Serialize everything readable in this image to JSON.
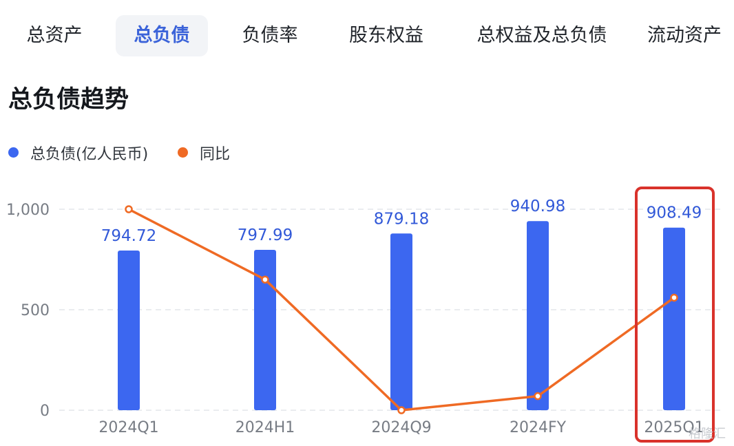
{
  "tabs": [
    {
      "label": "总资产",
      "active": false
    },
    {
      "label": "总负债",
      "active": true
    },
    {
      "label": "负债率",
      "active": false
    },
    {
      "label": "股东权益",
      "active": false
    },
    {
      "label": "总权益及总负债",
      "active": false
    },
    {
      "label": "流动资产",
      "active": false
    }
  ],
  "section_title": "总负债趋势",
  "watermark": "格隆汇",
  "colors": {
    "bar": "#3c67f0",
    "line": "#ef6a24",
    "highlight_box": "#d9322b",
    "value_label": "#3259d8",
    "axis_text": "#777c84",
    "grid": "#e4e6ea",
    "active_tab_text": "#3b63d9",
    "active_tab_bg": "#f2f4f7"
  },
  "chart_data": {
    "type": "bar",
    "categories": [
      "2024Q1",
      "2024H1",
      "2024Q9",
      "2024FY",
      "2025Q1"
    ],
    "series": [
      {
        "name": "总负债(亿人民币)",
        "type": "bar",
        "values": [
          794.72,
          797.99,
          879.18,
          940.98,
          908.49
        ]
      },
      {
        "name": "同比",
        "type": "line",
        "values": [
          1000,
          650,
          0,
          70,
          560
        ]
      }
    ],
    "value_labels": [
      "794.72",
      "797.99",
      "879.18",
      "940.98",
      "908.49"
    ],
    "yticks": [
      0,
      500,
      1000
    ],
    "ytick_labels": [
      "0",
      "500",
      "1,000"
    ],
    "ylim": [
      0,
      1000
    ],
    "grid": true,
    "legend_position": "top-left",
    "highlighted_category": "2025Q1"
  }
}
